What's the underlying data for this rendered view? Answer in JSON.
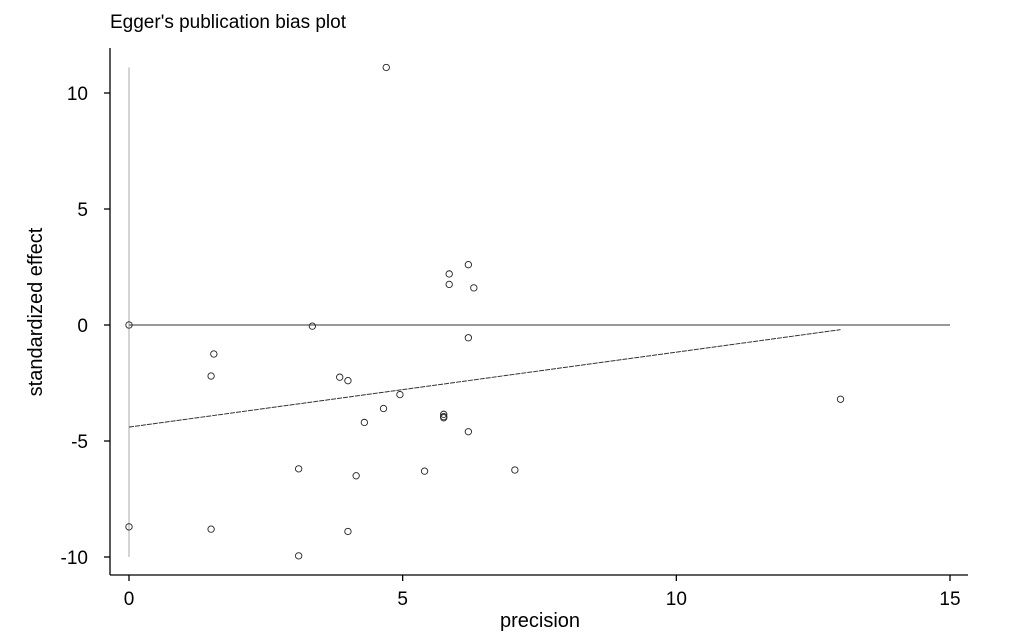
{
  "chart_data": {
    "type": "scatter",
    "title": "Egger's publication bias plot",
    "xlabel": "precision",
    "ylabel": "standardized effect",
    "xlim": [
      0,
      15
    ],
    "ylim": [
      -10,
      11
    ],
    "x_ticks": [
      0,
      5,
      10,
      15
    ],
    "y_ticks": [
      -10,
      -5,
      0,
      5,
      10
    ],
    "grid": false,
    "points": [
      {
        "x": 0.0,
        "y": 0.0
      },
      {
        "x": 0.0,
        "y": -8.7
      },
      {
        "x": 1.55,
        "y": -1.25
      },
      {
        "x": 1.5,
        "y": -2.2
      },
      {
        "x": 1.5,
        "y": -8.8
      },
      {
        "x": 3.1,
        "y": -6.2
      },
      {
        "x": 3.1,
        "y": -9.95
      },
      {
        "x": 3.35,
        "y": -0.05
      },
      {
        "x": 3.85,
        "y": -2.25
      },
      {
        "x": 4.0,
        "y": -2.4
      },
      {
        "x": 4.0,
        "y": -8.9
      },
      {
        "x": 4.15,
        "y": -6.5
      },
      {
        "x": 4.3,
        "y": -4.2
      },
      {
        "x": 4.65,
        "y": -3.6
      },
      {
        "x": 4.7,
        "y": 11.1
      },
      {
        "x": 4.95,
        "y": -3.0
      },
      {
        "x": 5.4,
        "y": -6.3
      },
      {
        "x": 5.75,
        "y": -3.85
      },
      {
        "x": 5.75,
        "y": -3.95
      },
      {
        "x": 5.75,
        "y": -4.0
      },
      {
        "x": 5.85,
        "y": 2.2
      },
      {
        "x": 5.85,
        "y": 1.75
      },
      {
        "x": 6.2,
        "y": 2.6
      },
      {
        "x": 6.2,
        "y": -0.55
      },
      {
        "x": 6.2,
        "y": -4.6
      },
      {
        "x": 6.3,
        "y": 1.6
      },
      {
        "x": 7.05,
        "y": -6.25
      },
      {
        "x": 13.0,
        "y": -3.2
      }
    ],
    "reference_line": {
      "y": 0,
      "x_range": [
        0,
        15
      ]
    },
    "regression_line": {
      "intercept": -4.4,
      "slope": 0.323,
      "x_range": [
        0,
        13
      ]
    },
    "ci_line": {
      "x": 0,
      "y_range": [
        -10,
        11.1
      ]
    }
  }
}
